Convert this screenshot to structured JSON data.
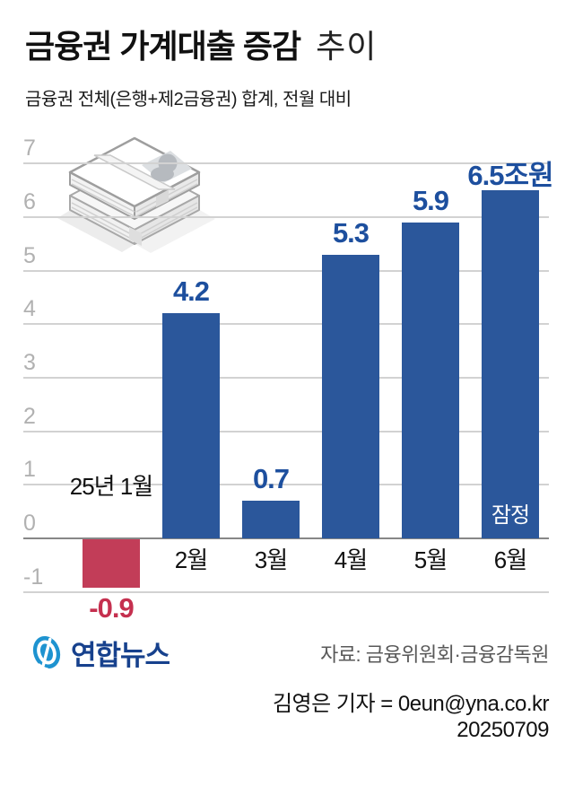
{
  "page": {
    "background": "#ffffff"
  },
  "header": {
    "title_strong": "금융권 가계대출 증감",
    "title_light": "추이",
    "subtitle": "금융권 전체(은행+제2금융권) 합계, 전월 대비"
  },
  "chart_data": {
    "type": "bar",
    "title": "금융권 가계대출 증감 추이",
    "subtitle": "금융권 전체(은행+제2금융권) 합계, 전월 대비",
    "unit": "조원",
    "categories": [
      "25년 1월",
      "2월",
      "3월",
      "4월",
      "5월",
      "6월"
    ],
    "values": [
      -0.9,
      4.2,
      0.7,
      5.3,
      5.9,
      6.5
    ],
    "value_labels": [
      "-0.9",
      "4.2",
      "0.7",
      "5.3",
      "5.9",
      "6.5조원"
    ],
    "annotations": [
      {
        "bar_index": 5,
        "label": "잠정"
      }
    ],
    "ylim": [
      -1,
      7
    ],
    "yticks": [
      7,
      6,
      5,
      4,
      3,
      2,
      1,
      0,
      -1
    ],
    "grid": true,
    "legend": false,
    "colors": {
      "bar_positive": "#2b579b",
      "bar_negative": "#c23d58",
      "label_positive": "#1d4f9e",
      "label_negative": "#c5304f",
      "annotation_text": "#ffffff",
      "gridline": "#d2d2d2",
      "zero_line": "#878787",
      "tick_label": "#b1b1b1"
    }
  },
  "footer": {
    "logo_text": "연합뉴스",
    "source": "자료: 금융위원회·금융감독원",
    "byline": "김영은 기자 = 0eun@yna.co.kr",
    "date": "20250709"
  }
}
